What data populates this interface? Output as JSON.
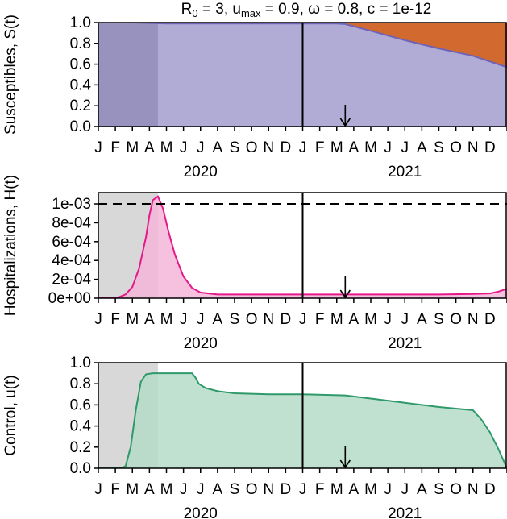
{
  "figure": {
    "title_parts": [
      "R",
      "0",
      " = 3, u",
      "max",
      " = 0.9, ω = 0.8, c = 1e-12"
    ]
  },
  "chart_data": [
    {
      "type": "area",
      "ylabel": "Susceptibles, S(t)",
      "ylim": [
        0,
        1
      ],
      "yticks": [
        "0.0",
        "0.2",
        "0.4",
        "0.6",
        "0.8",
        "1.0"
      ],
      "ytick_values": [
        0,
        0.2,
        0.4,
        0.6,
        0.8,
        1.0
      ],
      "xlim_months": [
        0,
        24
      ],
      "shaded_until_month": 3.5,
      "divider_month": 12,
      "arrow_month": 14.5,
      "fill_color": "#b0acd6",
      "shade_color": "#8f8bb5",
      "top_fill_color": "#d2692e",
      "line_color": "#6f63b8",
      "series": [
        {
          "x": [
            0,
            2,
            4,
            6,
            8,
            10,
            12,
            14,
            14.5,
            16,
            18,
            20,
            22,
            24
          ],
          "values": [
            1.0,
            1.0,
            0.99,
            0.99,
            0.99,
            0.99,
            0.99,
            0.99,
            0.985,
            0.92,
            0.83,
            0.75,
            0.68,
            0.57
          ]
        }
      ]
    },
    {
      "type": "area",
      "ylabel": "Hospitalizations, H(t)",
      "ylim": [
        0,
        0.00112
      ],
      "yticks": [
        "0e+00",
        "2e-04",
        "4e-04",
        "6e-04",
        "8e-04",
        "1e-03"
      ],
      "ytick_values": [
        0,
        0.0002,
        0.0004,
        0.0006,
        0.0008,
        0.001
      ],
      "capacity": 0.001,
      "xlim_months": [
        0,
        24
      ],
      "shaded_until_month": 3.5,
      "divider_month": 12,
      "arrow_month": 14.5,
      "fill_color": "#f5b6d8",
      "shade_color": "#d8d8d8",
      "line_color": "#e6198a",
      "series": [
        {
          "x": [
            0,
            0.8,
            1.2,
            1.6,
            2.0,
            2.4,
            2.8,
            3.0,
            3.2,
            3.5,
            3.8,
            4.1,
            4.5,
            5.0,
            5.5,
            6.0,
            7.0,
            8.0,
            10.0,
            12.0,
            14.0,
            16.0,
            18.0,
            20.0,
            22.0,
            23.0,
            23.5,
            24.0
          ],
          "values": [
            0,
            2e-06,
            1e-05,
            4e-05,
            0.00012,
            0.00032,
            0.00065,
            0.00088,
            0.00104,
            0.00108,
            0.00095,
            0.00072,
            0.00046,
            0.00023,
            0.00011,
            6e-05,
            4e-05,
            4e-05,
            4e-05,
            4e-05,
            4e-05,
            4e-05,
            4e-05,
            4e-05,
            4.5e-05,
            5e-05,
            7e-05,
            0.0001
          ]
        }
      ]
    },
    {
      "type": "area",
      "ylabel": "Control, u(t)",
      "ylim": [
        0,
        1
      ],
      "yticks": [
        "0.0",
        "0.2",
        "0.4",
        "0.6",
        "0.8",
        "1.0"
      ],
      "ytick_values": [
        0,
        0.2,
        0.4,
        0.6,
        0.8,
        1.0
      ],
      "xlim_months": [
        0,
        24
      ],
      "shaded_until_month": 3.5,
      "divider_month": 12,
      "arrow_month": 14.5,
      "fill_color": "#b5dcc8",
      "shade_color": "#d8d8d8",
      "line_color": "#2e9a6a",
      "series": [
        {
          "x": [
            0,
            1.3,
            1.6,
            1.9,
            2.2,
            2.5,
            2.8,
            3.2,
            5.5,
            5.7,
            5.9,
            6.3,
            7,
            8,
            10,
            12,
            14.5,
            16,
            18,
            20,
            22,
            22.5,
            23,
            23.5,
            24
          ],
          "values": [
            0,
            0,
            0.02,
            0.2,
            0.55,
            0.82,
            0.89,
            0.9,
            0.9,
            0.86,
            0.8,
            0.76,
            0.73,
            0.71,
            0.7,
            0.7,
            0.69,
            0.66,
            0.62,
            0.58,
            0.55,
            0.46,
            0.34,
            0.18,
            0.0
          ]
        }
      ]
    }
  ],
  "x_axis": {
    "month_labels": [
      "J",
      "F",
      "M",
      "A",
      "M",
      "J",
      "J",
      "A",
      "S",
      "O",
      "N",
      "D",
      "J",
      "F",
      "M",
      "A",
      "M",
      "J",
      "J",
      "A",
      "S",
      "O",
      "N",
      "D"
    ],
    "years": [
      "2020",
      "2021"
    ]
  }
}
